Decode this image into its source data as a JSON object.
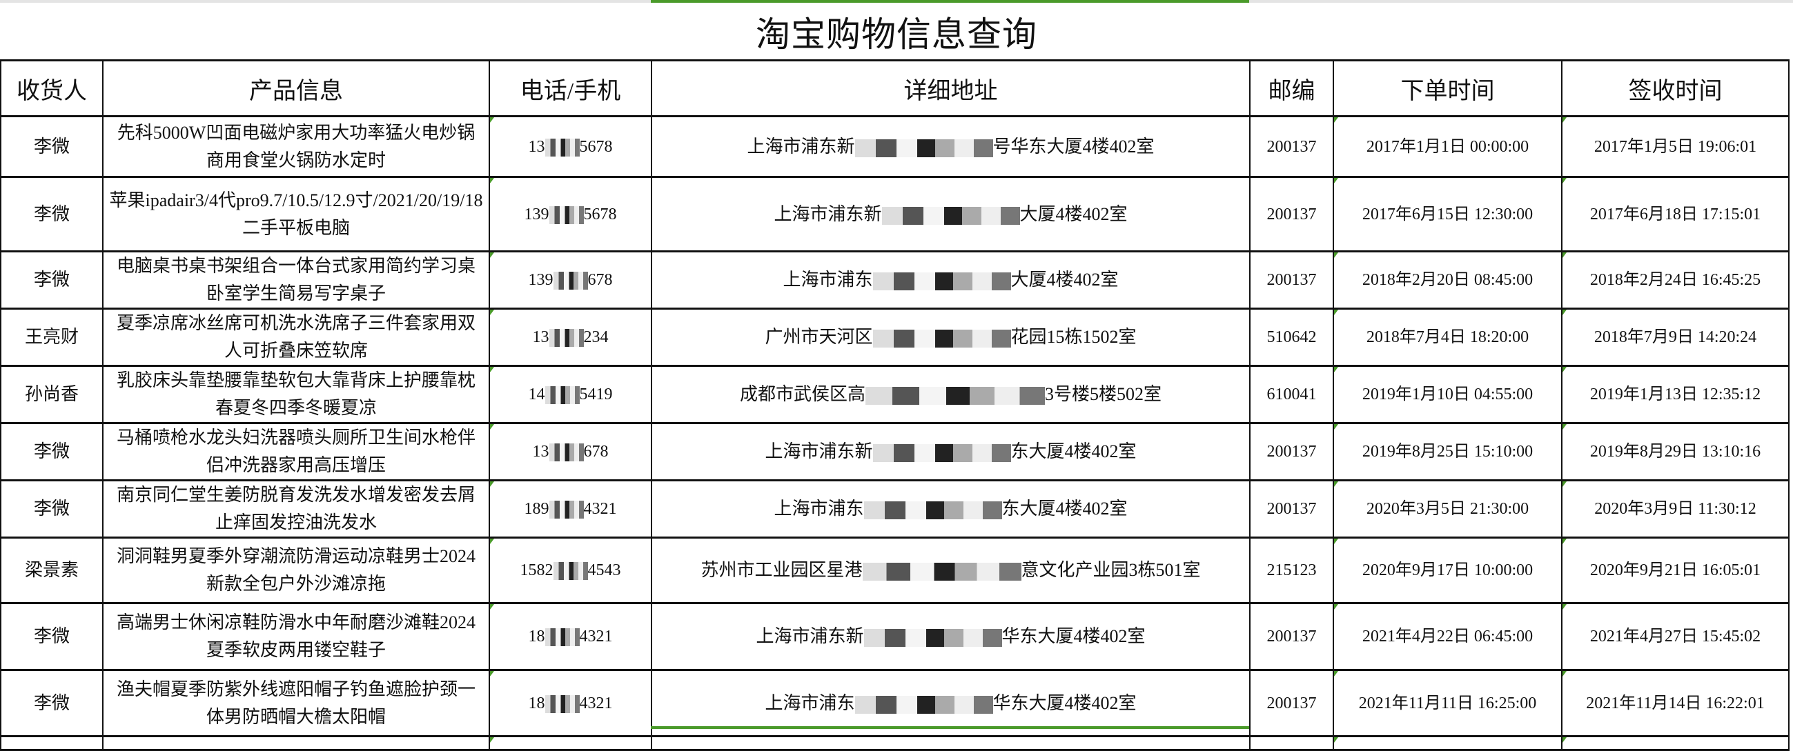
{
  "title": "淘宝购物信息查询",
  "accent_color": "#4a9a2a",
  "columns": [
    "收货人",
    "产品信息",
    "电话/手机",
    "详细地址",
    "邮编",
    "下单时间",
    "签收时间"
  ],
  "rows": [
    {
      "name": "李微",
      "product": "先科5000W凹面电磁炉家用大功率猛火电炒锅商用食堂火锅防水定时",
      "phone_start": "13",
      "phone_end": "5678",
      "addr_start": "上海市浦东新",
      "addr_end": "号华东大厦4楼402室",
      "zip": "200137",
      "order_time": "2017年1月1日 00:00:00",
      "sign_time": "2017年1月5日 19:06:01"
    },
    {
      "name": "李微",
      "product": "苹果ipadair3/4代pro9.7/10.5/12.9寸/2021/20/19/18二手平板电脑",
      "phone_start": "139",
      "phone_end": "5678",
      "addr_start": "上海市浦东新",
      "addr_end": "大厦4楼402室",
      "zip": "200137",
      "order_time": "2017年6月15日 12:30:00",
      "sign_time": "2017年6月18日 17:15:01"
    },
    {
      "name": "李微",
      "product": "电脑桌书桌书架组合一体台式家用简约学习桌卧室学生简易写字桌子",
      "phone_start": "139",
      "phone_end": "678",
      "addr_start": "上海市浦东",
      "addr_end": "大厦4楼402室",
      "zip": "200137",
      "order_time": "2018年2月20日 08:45:00",
      "sign_time": "2018年2月24日 16:45:25"
    },
    {
      "name": "王亮财",
      "product": "夏季凉席冰丝席可机洗水洗席子三件套家用双人可折叠床笠软席",
      "phone_start": "13",
      "phone_end": "234",
      "addr_start": "广州市天河区",
      "addr_end": "花园15栋1502室",
      "zip": "510642",
      "order_time": "2018年7月4日 18:20:00",
      "sign_time": "2018年7月9日 14:20:24"
    },
    {
      "name": "孙尚香",
      "product": "乳胶床头靠垫腰靠垫软包大靠背床上护腰靠枕春夏冬四季冬暖夏凉",
      "phone_start": "14",
      "phone_end": "5419",
      "addr_start": "成都市武侯区高",
      "addr_end": "3号楼5楼502室",
      "zip": "610041",
      "order_time": "2019年1月10日 04:55:00",
      "sign_time": "2019年1月13日 12:35:12"
    },
    {
      "name": "李微",
      "product": "马桶喷枪水龙头妇洗器喷头厕所卫生间水枪伴侣冲洗器家用高压增压",
      "phone_start": "13",
      "phone_end": "678",
      "addr_start": "上海市浦东新",
      "addr_end": "东大厦4楼402室",
      "zip": "200137",
      "order_time": "2019年8月25日 15:10:00",
      "sign_time": "2019年8月29日 13:10:16"
    },
    {
      "name": "李微",
      "product": "南京同仁堂生姜防脱育发洗发水增发密发去屑止痒固发控油洗发水",
      "phone_start": "189",
      "phone_end": "4321",
      "addr_start": "上海市浦东",
      "addr_end": "东大厦4楼402室",
      "zip": "200137",
      "order_time": "2020年3月5日 21:30:00",
      "sign_time": "2020年3月9日 11:30:12"
    },
    {
      "name": "梁景素",
      "product": "洞洞鞋男夏季外穿潮流防滑运动凉鞋男士2024新款全包户外沙滩凉拖",
      "phone_start": "1582",
      "phone_end": "4543",
      "addr_start": "苏州市工业园区星港",
      "addr_end": "意文化产业园3栋501室",
      "zip": "215123",
      "order_time": "2020年9月17日 10:00:00",
      "sign_time": "2020年9月21日 16:05:01"
    },
    {
      "name": "李微",
      "product": "高端男士休闲凉鞋防滑水中年耐磨沙滩鞋2024夏季软皮两用镂空鞋子",
      "phone_start": "18",
      "phone_end": "4321",
      "addr_start": "上海市浦东新",
      "addr_end": "华东大厦4楼402室",
      "zip": "200137",
      "order_time": "2021年4月22日 06:45:00",
      "sign_time": "2021年4月27日 15:45:02"
    },
    {
      "name": "李微",
      "product": "渔夫帽夏季防紫外线遮阳帽子钓鱼遮脸护颈一体男防晒帽大檐太阳帽",
      "phone_start": "18",
      "phone_end": "4321",
      "addr_start": "上海市浦东",
      "addr_end": "华东大厦4楼402室",
      "zip": "200137",
      "order_time": "2021年11月11日 16:25:00",
      "sign_time": "2021年11月14日 16:22:01"
    }
  ]
}
